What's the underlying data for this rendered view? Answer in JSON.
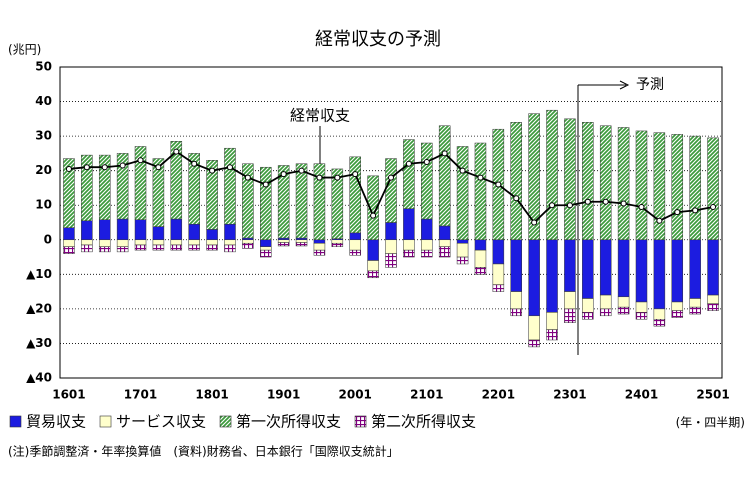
{
  "chart_data": {
    "type": "bar",
    "title": "経常収支の予測",
    "y_unit": "(兆円)",
    "x_unit": "(年・四半期)",
    "footnote": "(注)季節調整済・年率換算値　(資料)財務省、日本銀行「国際収支統計」",
    "annotations": [
      "経常収支",
      "予測"
    ],
    "categories": [
      "1601",
      null,
      null,
      null,
      "1701",
      null,
      null,
      null,
      "1801",
      null,
      null,
      null,
      "1901",
      null,
      null,
      null,
      "2001",
      null,
      null,
      null,
      "2101",
      null,
      null,
      null,
      "2201",
      null,
      null,
      null,
      "2301",
      null,
      null,
      null,
      "2401",
      null,
      null,
      null,
      "2501"
    ],
    "series": [
      {
        "name": "貿易収支",
        "type": "bar",
        "color": "#1c1ce0",
        "pattern": null,
        "values": [
          3.5,
          5.5,
          5.8,
          6,
          5.8,
          3.8,
          6,
          4.5,
          3,
          4.5,
          0.5,
          -2,
          0.5,
          0.5,
          -1,
          0.3,
          2,
          -6,
          5,
          9,
          6,
          4,
          -1,
          -3,
          -7,
          -15,
          -22,
          -21,
          -15,
          -17,
          -16,
          -16.5,
          -18,
          -20,
          -18,
          -17,
          -16
        ]
      },
      {
        "name": "サービス収支",
        "type": "bar",
        "color": "#ffffcc",
        "pattern": null,
        "values": [
          -2,
          -1.5,
          -2,
          -2,
          -1.5,
          -1.5,
          -1.5,
          -1.5,
          -1.5,
          -1.5,
          -1,
          -1,
          -0.8,
          -0.8,
          -2,
          -1,
          -3,
          -3,
          -4,
          -3,
          -3,
          -2,
          -4,
          -5,
          -6,
          -5,
          -7,
          -5,
          -5,
          -4,
          -4,
          -3,
          -3,
          -3,
          -2.5,
          -2.5,
          -2.5
        ]
      },
      {
        "name": "第一次所得収支",
        "type": "bar",
        "color": "#3c9a3c",
        "pattern": "diagonal",
        "values": [
          20,
          19,
          18.7,
          19,
          21.2,
          19.7,
          22.5,
          20.5,
          20,
          22,
          21.5,
          21,
          21,
          21.5,
          22,
          20.2,
          22,
          18.5,
          18.5,
          20,
          22,
          29,
          27,
          28,
          32,
          34,
          36.5,
          37.5,
          35,
          34,
          33,
          32.5,
          31.5,
          31,
          30.5,
          30,
          29.5
        ]
      },
      {
        "name": "第二次所得収支",
        "type": "bar",
        "color": "#800080",
        "pattern": "grid",
        "values": [
          -2,
          -2,
          -1.5,
          -1.5,
          -1.5,
          -1.5,
          -1.5,
          -1.5,
          -1.5,
          -2,
          -1.5,
          -2,
          -1,
          -1,
          -1.5,
          -1,
          -1.5,
          -2,
          -4,
          -2,
          -2,
          -3,
          -2,
          -2,
          -2,
          -2,
          -2,
          -3,
          -4,
          -2,
          -2,
          -2,
          -2,
          -2,
          -2,
          -2,
          -2
        ]
      },
      {
        "name": "経常収支",
        "type": "line",
        "color": "#000000",
        "legend": false,
        "values": [
          20.5,
          21,
          21,
          21.5,
          23,
          21,
          25.5,
          22,
          20,
          21,
          18,
          16,
          19,
          20,
          18,
          18,
          19,
          7,
          18,
          22,
          22.5,
          25,
          20,
          18,
          16,
          12,
          5,
          10,
          10,
          11,
          11,
          10.5,
          9.5,
          5.5,
          8,
          8.5,
          9.5
        ]
      }
    ],
    "ylim": [
      -40,
      50
    ],
    "yticks": [
      {
        "value": -40,
        "label": "▲40"
      },
      {
        "value": -30,
        "label": "▲30"
      },
      {
        "value": -20,
        "label": "▲20"
      },
      {
        "value": -10,
        "label": "▲10"
      },
      0,
      10,
      20,
      30,
      40,
      50
    ],
    "grid": true
  }
}
